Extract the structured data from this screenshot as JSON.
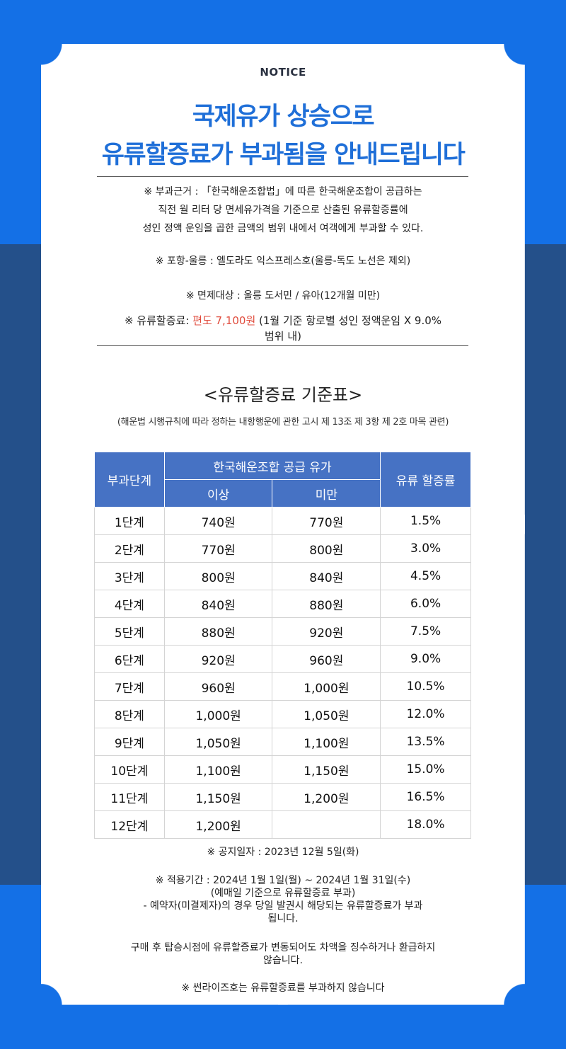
{
  "notice_label": "NOTICE",
  "title_line1": "국제유가 상승으로",
  "title_line2": "유류할증료가 부과됨을 안내드립니다",
  "basis_lines": [
    "※ 부과근거 : 「한국해운조합법」에 따른 한국해운조합이 공급하는",
    "직전 월 리터 당 면세유가격을 기준으로 산출된 유류할증률에",
    "성인 정액 운임을 곱한 금액의 범위 내에서 여객에게 부과할 수 있다."
  ],
  "route_line": "※ 포항-울릉 : 엘도라도 익스프레스호(울릉-독도 노선은 제외)",
  "exempt_line": "※ 면제대상 : 울릉 도서민 / 유아(12개월 미만)",
  "surcharge": {
    "prefix": "※ 유류할증료: ",
    "amount": "편도 7,100원",
    "suffix_line1": " (1월 기준 항로별 성인 정액운임 X 9.0%",
    "suffix_line2": "범위 내)",
    "amount_color": "#e04b3c"
  },
  "table_title": "<유류할증료 기준표>",
  "table_subtitle": "(해운법 시행규칙에 따라 정하는 내항행운에 관한 고시 제 13조 제 3항 제 2호 마목 관련)",
  "table": {
    "header_stage": "부과단계",
    "header_price": "한국해운조합 공급 유가",
    "header_min": "이상",
    "header_max": "미만",
    "header_rate": "유류 할증률",
    "rows": [
      {
        "stage": "1단계",
        "min": "740원",
        "max": "770원",
        "rate": "1.5%"
      },
      {
        "stage": "2단계",
        "min": "770원",
        "max": "800원",
        "rate": "3.0%"
      },
      {
        "stage": "3단계",
        "min": "800원",
        "max": "840원",
        "rate": "4.5%"
      },
      {
        "stage": "4단계",
        "min": "840원",
        "max": "880원",
        "rate": "6.0%"
      },
      {
        "stage": "5단계",
        "min": "880원",
        "max": "920원",
        "rate": "7.5%"
      },
      {
        "stage": "6단계",
        "min": "920원",
        "max": "960원",
        "rate": "9.0%"
      },
      {
        "stage": "7단계",
        "min": "960원",
        "max": "1,000원",
        "rate": "10.5%"
      },
      {
        "stage": "8단계",
        "min": "1,000원",
        "max": "1,050원",
        "rate": "12.0%"
      },
      {
        "stage": "9단계",
        "min": "1,050원",
        "max": "1,100원",
        "rate": "13.5%"
      },
      {
        "stage": "10단계",
        "min": "1,100원",
        "max": "1,150원",
        "rate": "15.0%"
      },
      {
        "stage": "11단계",
        "min": "1,150원",
        "max": "1,200원",
        "rate": "16.5%"
      },
      {
        "stage": "12단계",
        "min": "1,200원",
        "max": "",
        "rate": "18.0%"
      }
    ]
  },
  "notice_date": "※ 공지일자 : 2023년 12월 5일(화)",
  "period_lines": [
    "※ 적용기간 : 2024년 1월 1일(월) ~ 2024년 1월 31일(수)",
    "(예매일 기준으로 유류할증료 부과)",
    "- 예약자(미결제자)의 경우 당일 발권시 해당되는 유류할증료가 부과",
    "됩니다."
  ],
  "refund_lines": [
    "구매 후 탑승시점에 유류할증료가 변동되어도 차액을 징수하거나 환급하지",
    "않습니다."
  ],
  "sunrise_line": "※ 썬라이즈호는 유류할증료를 부과하지 않습니다"
}
